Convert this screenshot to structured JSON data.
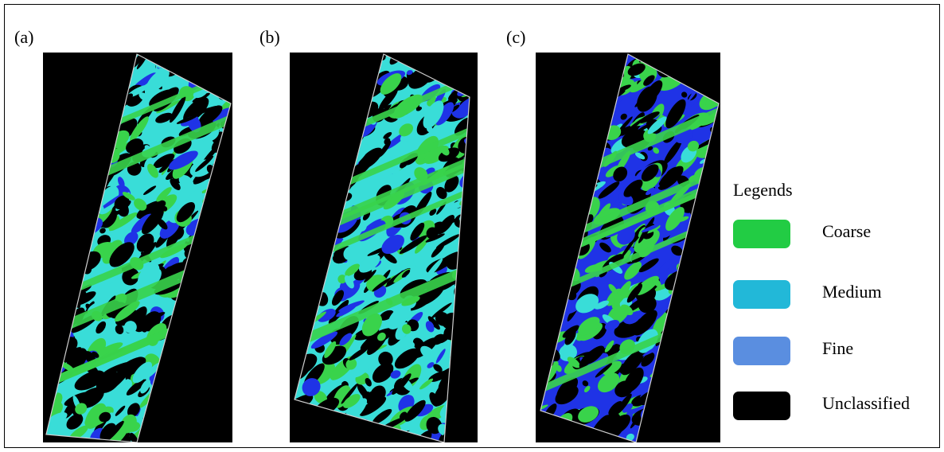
{
  "panels": [
    {
      "label": "(a)",
      "dominant": "Medium"
    },
    {
      "label": "(b)",
      "dominant": "Medium"
    },
    {
      "label": "(c)",
      "dominant": "Fine"
    }
  ],
  "legend": {
    "title": "Legends",
    "items": [
      {
        "label": "Coarse",
        "color": "#22cc44"
      },
      {
        "label": "Medium",
        "color": "#22b8d8"
      },
      {
        "label": "Fine",
        "color": "#5a8ee0"
      },
      {
        "label": "Unclassified",
        "color": "#000000"
      }
    ]
  },
  "colors": {
    "coarse_map": "#39d34b",
    "medium_map": "#39ddd8",
    "fine_map": "#1f33e6",
    "unclassified_map": "#000000",
    "strip_border": "#cfcfcf"
  }
}
